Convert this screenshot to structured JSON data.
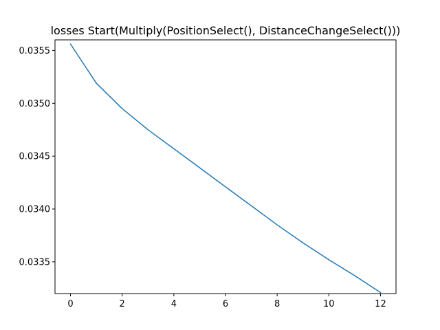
{
  "chart_data": {
    "type": "line",
    "title": "losses Start(Multiply(PositionSelect(), DistanceChangeSelect()))",
    "xlabel": "",
    "ylabel": "",
    "xlim": [
      -0.6,
      12.6
    ],
    "ylim": [
      0.0332,
      0.0356
    ],
    "xticks": [
      0,
      2,
      4,
      6,
      8,
      10,
      12
    ],
    "yticks": [
      0.0335,
      0.034,
      0.0345,
      0.035,
      0.0355
    ],
    "ytick_labels": [
      "0.0335",
      "0.0340",
      "0.0345",
      "0.0350",
      "0.0355"
    ],
    "grid": false,
    "series": [
      {
        "color": "#1f77b4",
        "x": [
          0,
          1,
          2,
          3,
          4,
          5,
          6,
          7,
          8,
          9,
          10,
          11,
          12
        ],
        "y": [
          0.03556,
          0.03519,
          0.03495,
          0.03475,
          0.03457,
          0.03439,
          0.03421,
          0.03403,
          0.03385,
          0.03368,
          0.03352,
          0.03337,
          0.03321
        ]
      }
    ]
  }
}
